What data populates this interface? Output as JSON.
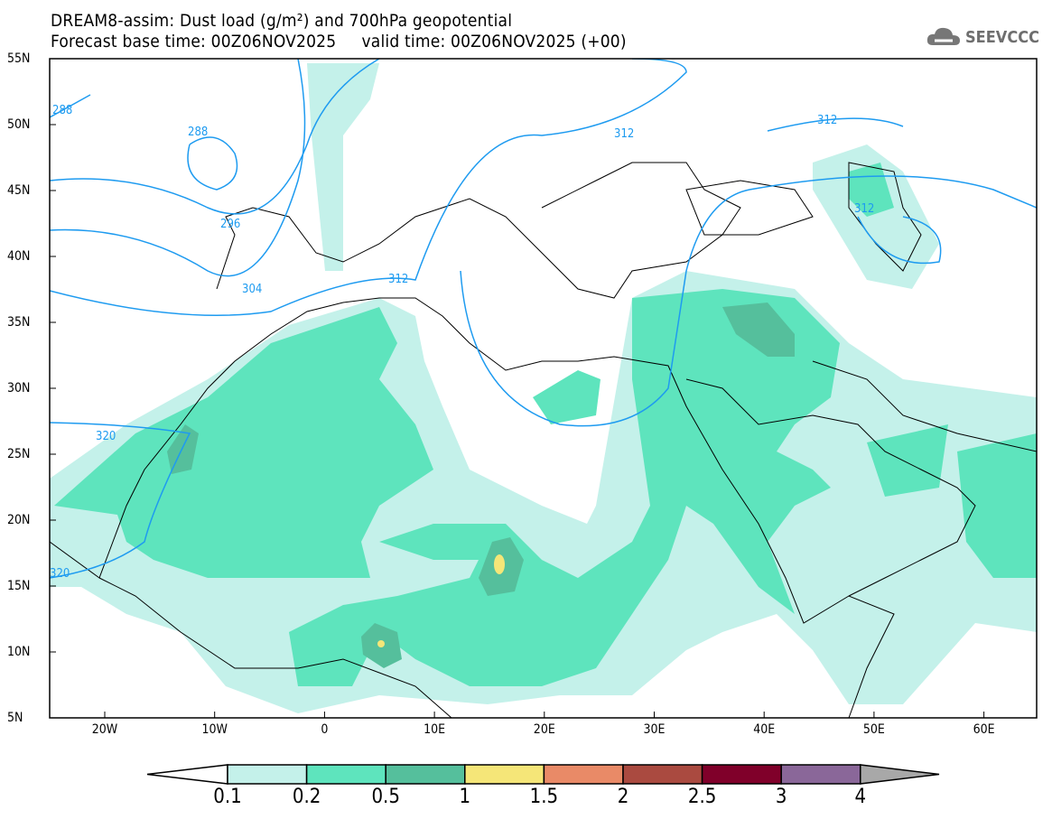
{
  "title": {
    "line1": "DREAM8-assim: Dust load (g/m²) and 700hPa geopotential",
    "line2": "Forecast base time: 00Z06NOV2025     valid time: 00Z06NOV2025 (+00)"
  },
  "logo": {
    "text": "SEEVCCC",
    "icon": "cloud-icon"
  },
  "axes": {
    "lat_ticks": [
      "55N",
      "50N",
      "45N",
      "40N",
      "35N",
      "30N",
      "25N",
      "20N",
      "15N",
      "10N",
      "5N"
    ],
    "lon_ticks": [
      "20W",
      "10W",
      "0",
      "10E",
      "20E",
      "30E",
      "40E",
      "50E",
      "60E"
    ]
  },
  "contour_labels": [
    "288",
    "288",
    "296",
    "304",
    "312",
    "312",
    "312",
    "312",
    "320",
    "320"
  ],
  "colorbar": {
    "ticks": [
      "0.1",
      "0.2",
      "0.5",
      "1",
      "1.5",
      "2",
      "2.5",
      "3",
      "4"
    ],
    "colors": [
      "#ffffff",
      "#c4f1ea",
      "#5ee4bd",
      "#55bf9c",
      "#f5e678",
      "#e98a67",
      "#aa4a40",
      "#80002a",
      "#8a6799",
      "#a8a8a8"
    ]
  },
  "colors": {
    "contour": "#1e9bf0",
    "coast": "#000000"
  }
}
